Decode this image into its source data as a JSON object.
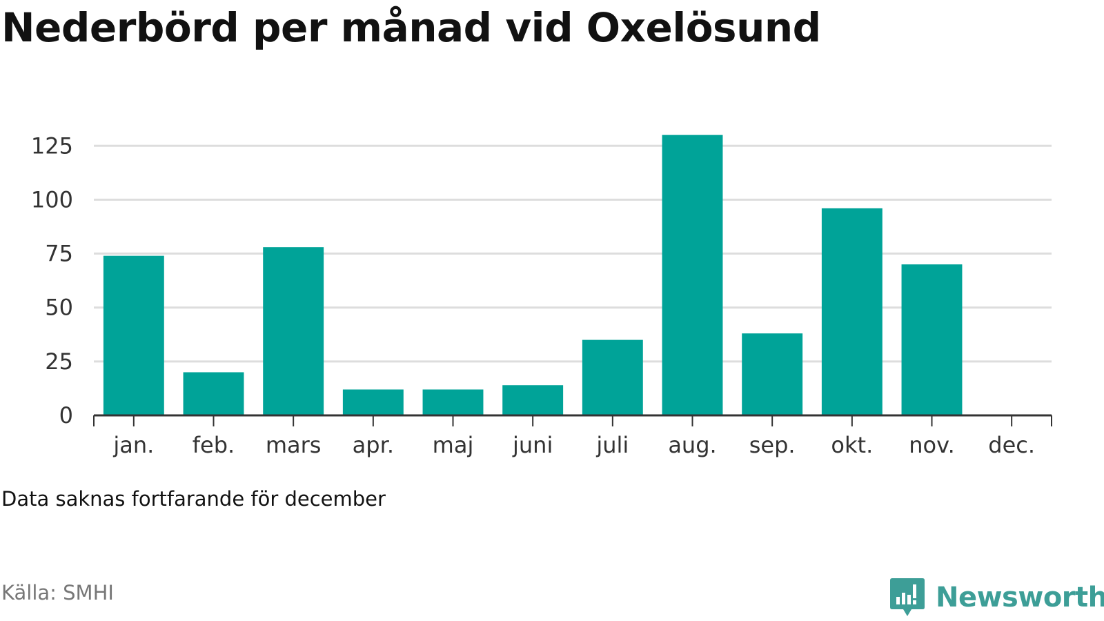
{
  "header": {
    "title": "Nederbörd per månad vid Oxelösund"
  },
  "footer": {
    "note": "Data saknas fortfarande för december",
    "source": "Källa: SMHI",
    "brand": "Newsworthy"
  },
  "colors": {
    "bar": "#00a398",
    "grid": "#dddddd",
    "axis": "#333333",
    "brand": "#3d9e97"
  },
  "chart_data": {
    "type": "bar",
    "title": "Nederbörd per månad vid Oxelösund",
    "xlabel": "",
    "ylabel": "",
    "categories": [
      "jan.",
      "feb.",
      "mars",
      "apr.",
      "maj",
      "juni",
      "juli",
      "aug.",
      "sep.",
      "okt.",
      "nov.",
      "dec."
    ],
    "values": [
      74,
      20,
      78,
      12,
      12,
      14,
      35,
      130,
      38,
      96,
      70,
      null
    ],
    "ylim": [
      0,
      130
    ],
    "yticks": [
      0,
      25,
      50,
      75,
      100,
      125
    ],
    "grid": true,
    "legend": "none"
  }
}
